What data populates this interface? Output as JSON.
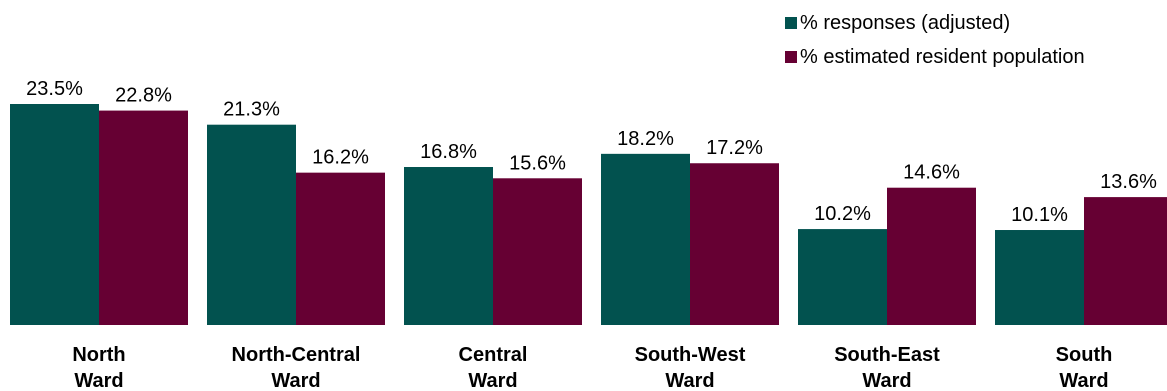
{
  "chart_data": {
    "type": "bar",
    "categories": [
      [
        "North",
        "Ward"
      ],
      [
        "North-Central",
        "Ward"
      ],
      [
        "Central",
        "Ward"
      ],
      [
        "South-West",
        "Ward"
      ],
      [
        "South-East",
        "Ward"
      ],
      [
        "South",
        "Ward"
      ]
    ],
    "series": [
      {
        "name": "% responses (adjusted)",
        "color": "#02524F",
        "values": [
          23.5,
          21.3,
          16.8,
          18.2,
          10.2,
          10.1
        ],
        "labels": [
          "23.5%",
          "21.3%",
          "16.8%",
          "18.2%",
          "10.2%",
          "10.1%"
        ]
      },
      {
        "name": "% estimated resident population",
        "color": "#660033",
        "values": [
          22.8,
          16.2,
          15.6,
          17.2,
          14.6,
          13.6
        ],
        "labels": [
          "22.8%",
          "16.2%",
          "15.6%",
          "17.2%",
          "14.6%",
          "13.6%"
        ]
      }
    ],
    "ylim": [
      0,
      23.5
    ],
    "grid": false,
    "legend": "top-right"
  }
}
